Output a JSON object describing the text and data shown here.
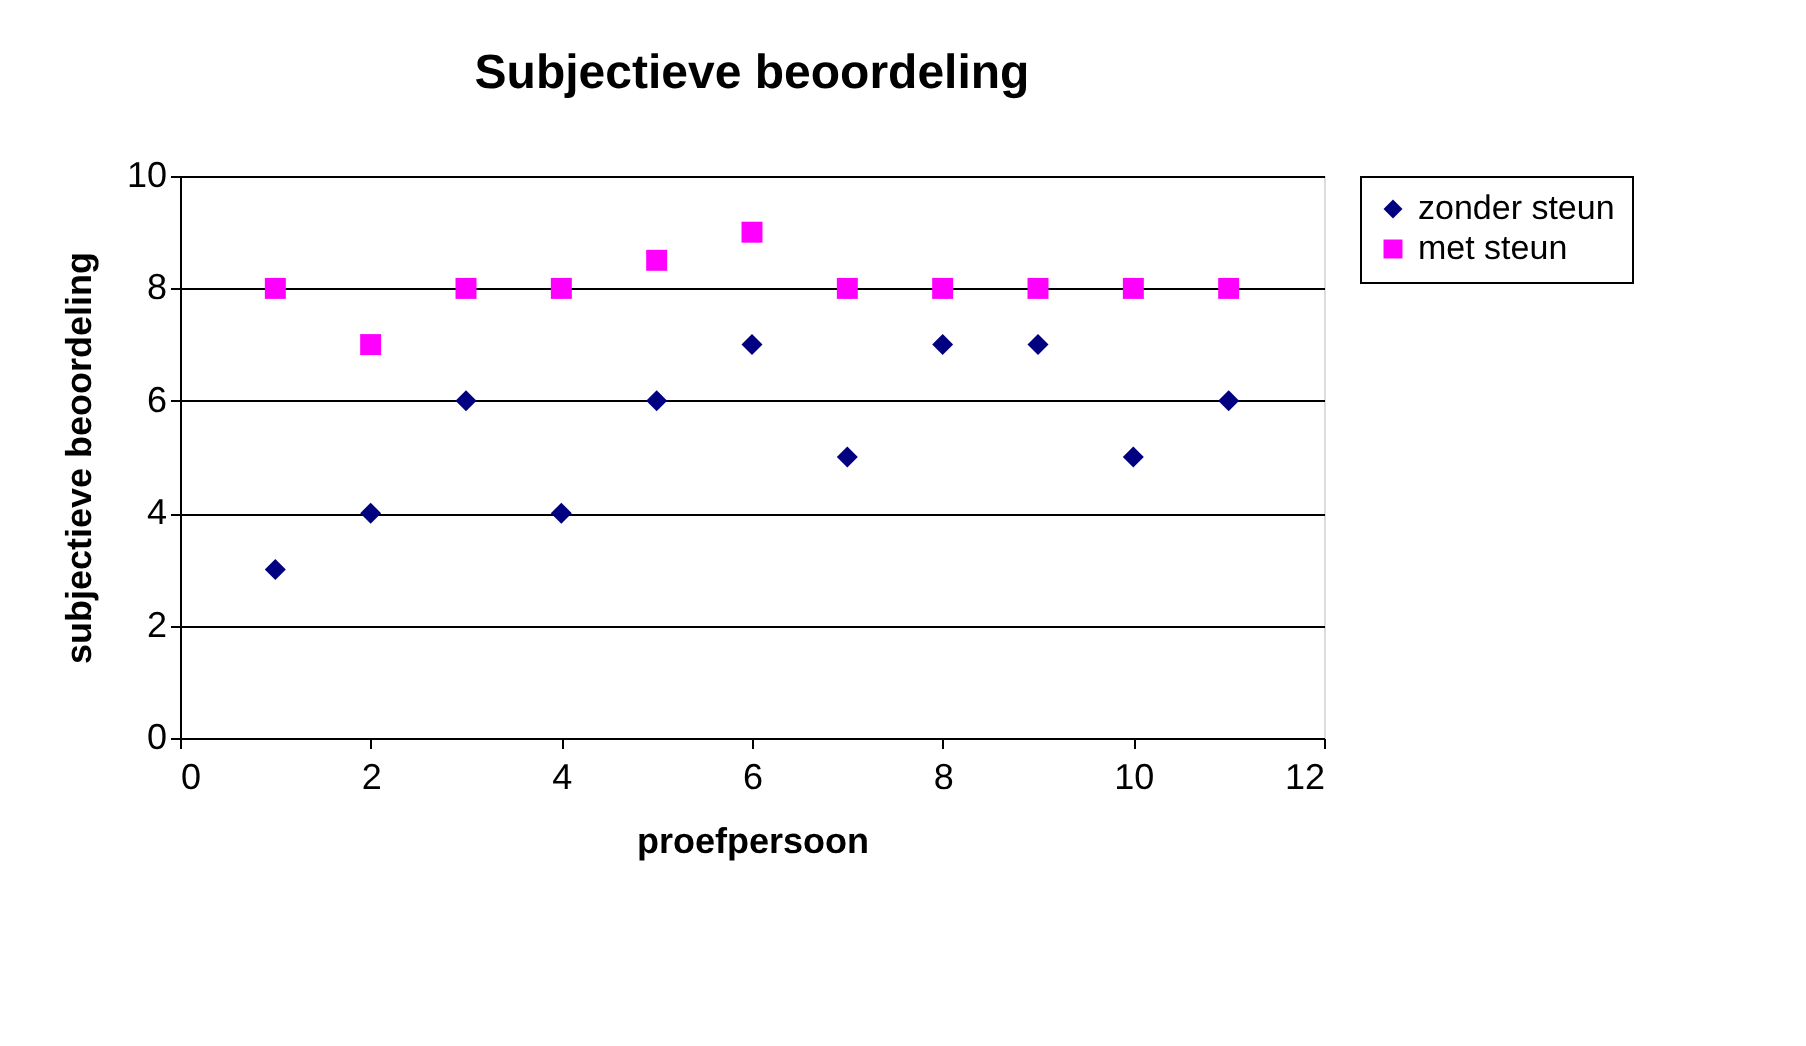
{
  "chart_data": {
    "type": "scatter",
    "title": "Subjectieve beoordeling",
    "xlabel": "proefpersoon",
    "ylabel": "subjectieve beoordeling",
    "x": [
      1,
      2,
      3,
      4,
      5,
      6,
      7,
      8,
      9,
      10,
      11
    ],
    "series": [
      {
        "name": "zonder steun",
        "color": "#000080",
        "marker": "diamond",
        "values": [
          3,
          4,
          6,
          4,
          6,
          7,
          5,
          7,
          7,
          5,
          6
        ]
      },
      {
        "name": "met steun",
        "color": "#ff00ff",
        "marker": "square",
        "values": [
          8,
          7,
          8,
          8,
          8.5,
          9,
          8,
          8,
          8,
          8,
          8
        ]
      }
    ],
    "xlim": [
      0,
      12
    ],
    "xticks": [
      0,
      2,
      4,
      6,
      8,
      10,
      12
    ],
    "ylim": [
      0,
      10
    ],
    "yticks": [
      0,
      2,
      4,
      6,
      8,
      10
    ],
    "grid": "y",
    "legend": "right"
  }
}
